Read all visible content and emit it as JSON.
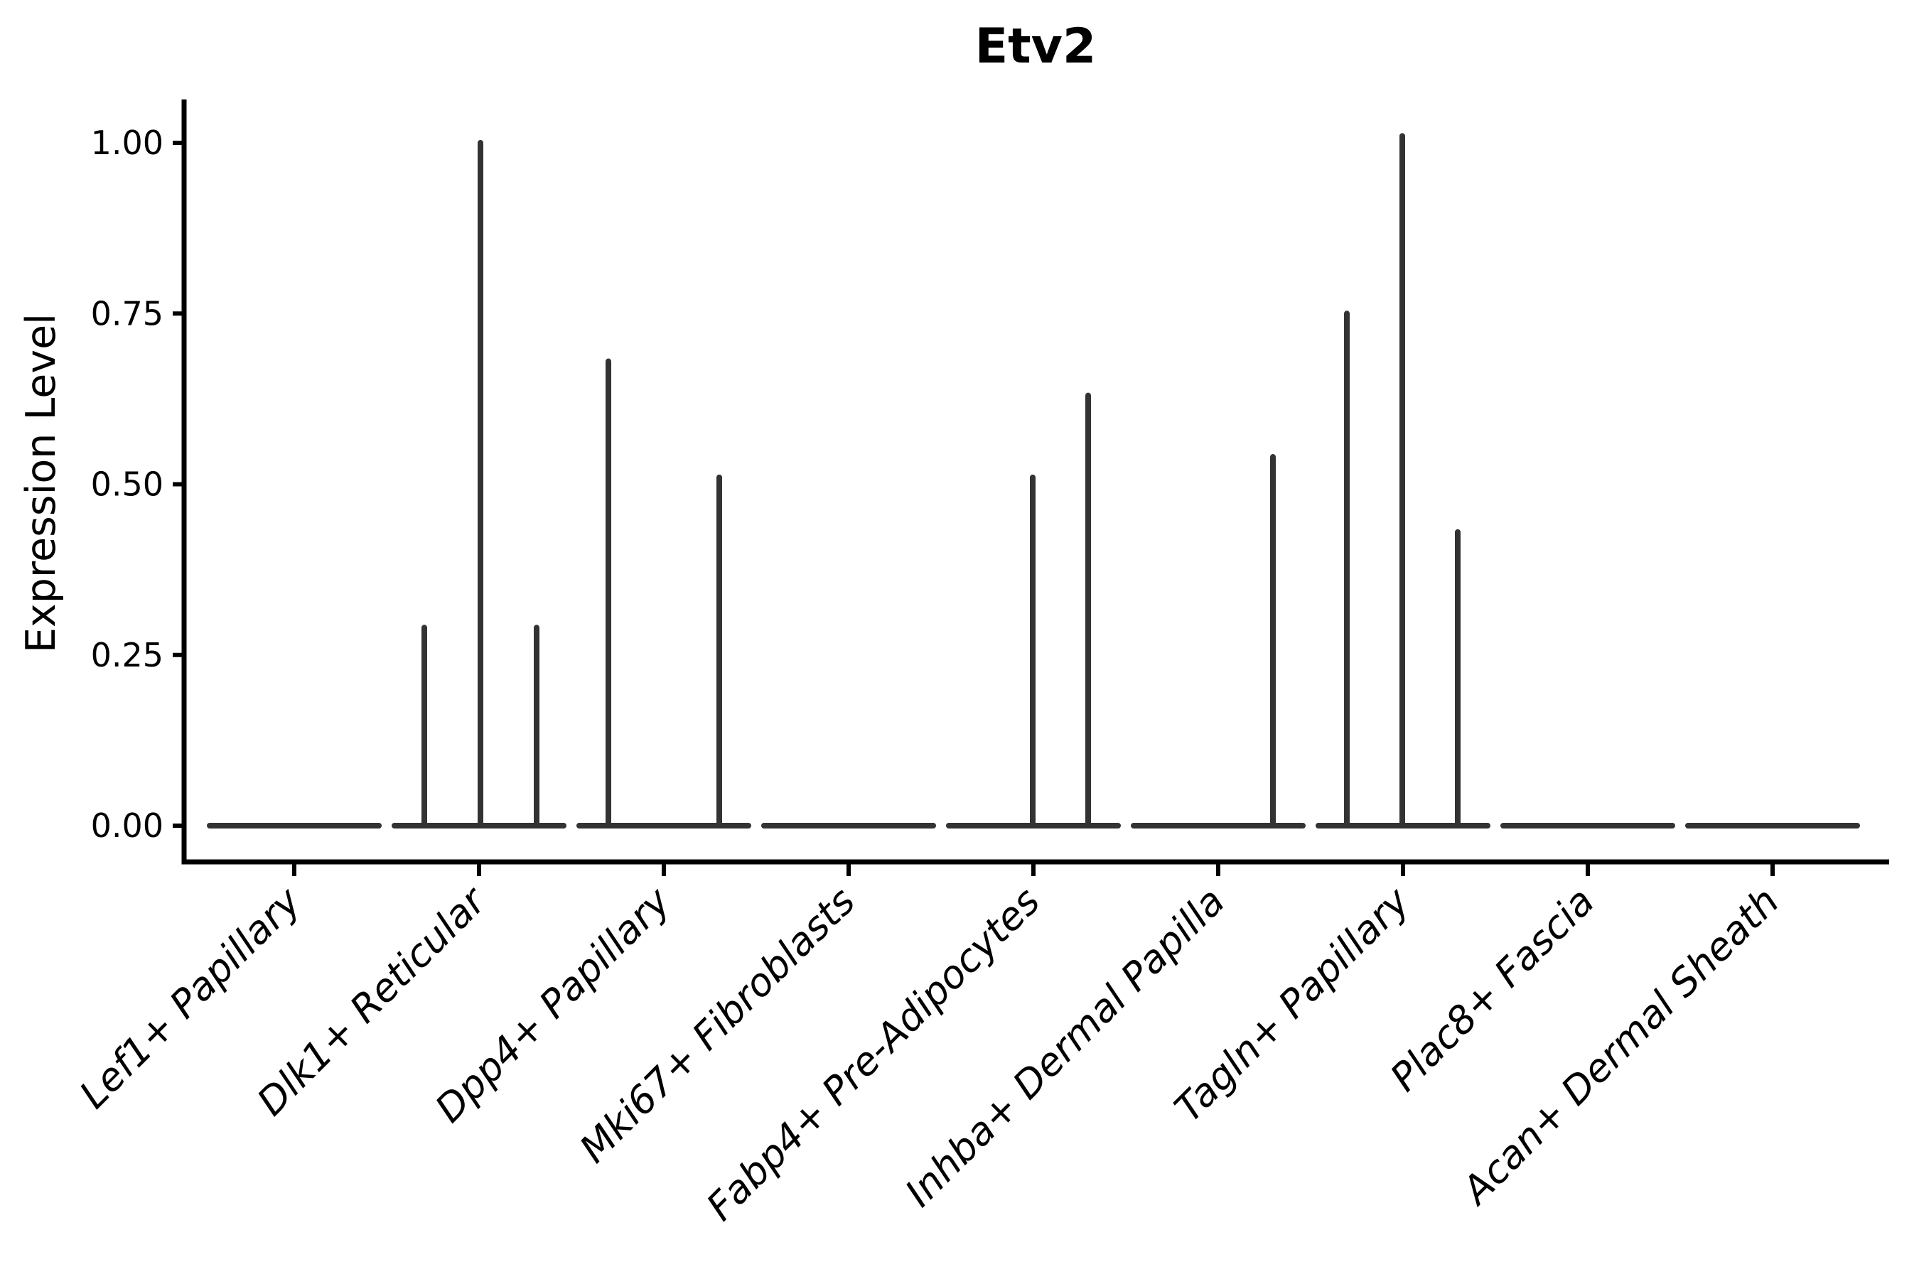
{
  "figure": {
    "title": "Etv2",
    "y_axis_title": "Expression Level"
  },
  "chart_data": {
    "type": "violin",
    "title": "Etv2",
    "xlabel": "",
    "ylabel": "Expression Level",
    "ylim": [
      0,
      1.05
    ],
    "grid": false,
    "legend": null,
    "ytick_values": [
      0,
      0.25,
      0.5,
      0.75,
      1.0
    ],
    "ytick_labels": [
      "0.00",
      "0.25",
      "0.50",
      "0.75",
      "1.00"
    ],
    "categories": [
      "Lef1+ Papillary",
      "Dlk1+ Reticular",
      "Dpp4+ Papillary",
      "Mki67+ Fibroblasts",
      "Fabp4+ Pre-Adipocytes",
      "Inhba+ Dermal Papilla",
      "Tagln+ Papillary",
      "Plac8+ Fascia",
      "Acan+ Dermal Sheath"
    ],
    "violins": [
      {
        "category": "Lef1+ Papillary",
        "baseline_value": 0,
        "spikes": []
      },
      {
        "category": "Dlk1+ Reticular",
        "baseline_value": 0,
        "spikes": [
          {
            "x_offset": -77,
            "value": 0.29
          },
          {
            "x_offset": 2,
            "value": 1.0
          },
          {
            "x_offset": 81,
            "value": 0.29
          }
        ]
      },
      {
        "category": "Dpp4+ Papillary",
        "baseline_value": 0,
        "spikes": [
          {
            "x_offset": -78,
            "value": 0.68
          },
          {
            "x_offset": 78,
            "value": 0.51
          }
        ]
      },
      {
        "category": "Mki67+ Fibroblasts",
        "baseline_value": 0,
        "spikes": []
      },
      {
        "category": "Fabp4+ Pre-Adipocytes",
        "baseline_value": 0,
        "spikes": [
          {
            "x_offset": -1,
            "value": 0.51
          },
          {
            "x_offset": 77,
            "value": 0.63
          }
        ]
      },
      {
        "category": "Inhba+ Dermal Papilla",
        "baseline_value": 0,
        "spikes": [
          {
            "x_offset": 77,
            "value": 0.54
          }
        ]
      },
      {
        "category": "Tagln+ Papillary",
        "baseline_value": 0,
        "spikes": [
          {
            "x_offset": -79,
            "value": 0.75
          },
          {
            "x_offset": -1,
            "value": 1.01
          },
          {
            "x_offset": 77,
            "value": 0.43
          }
        ]
      },
      {
        "category": "Plac8+ Fascia",
        "baseline_value": 0,
        "spikes": []
      },
      {
        "category": "Acan+ Dermal Sheath",
        "baseline_value": 0,
        "spikes": []
      }
    ],
    "colors": {
      "violin": "#333333",
      "axis": "#000000",
      "text": "#000000",
      "background": "#ffffff"
    }
  }
}
